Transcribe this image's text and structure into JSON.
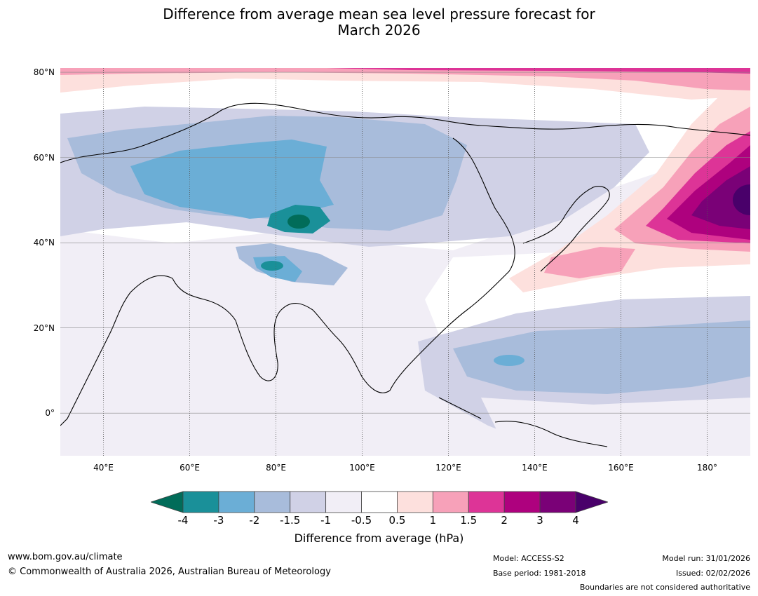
{
  "title_line1": "Difference from average mean sea level pressure forecast for",
  "title_line2": "March 2026",
  "map": {
    "lon_range": [
      30,
      190
    ],
    "lat_range": [
      -10,
      81
    ],
    "lat_ticks": [
      {
        "value": 80,
        "label": "80°N"
      },
      {
        "value": 60,
        "label": "60°N"
      },
      {
        "value": 40,
        "label": "40°N"
      },
      {
        "value": 20,
        "label": "20°N"
      },
      {
        "value": 0,
        "label": "0°"
      }
    ],
    "lon_ticks": [
      {
        "value": 40,
        "label": "40°E"
      },
      {
        "value": 60,
        "label": "60°E"
      },
      {
        "value": 80,
        "label": "80°E"
      },
      {
        "value": 100,
        "label": "100°E"
      },
      {
        "value": 120,
        "label": "120°E"
      },
      {
        "value": 140,
        "label": "140°E"
      },
      {
        "value": 160,
        "label": "160°E"
      },
      {
        "value": 180,
        "label": "180°"
      }
    ],
    "anomaly_regions": [
      {
        "name": "central-asia-low",
        "level": -1.5,
        "lon": 80,
        "lat": 50
      },
      {
        "name": "kazakhstan-low",
        "level": -3,
        "lon": 85,
        "lat": 45
      },
      {
        "name": "tarim-low",
        "level": -4,
        "lon": 87,
        "lat": 44
      },
      {
        "name": "tibet-low",
        "level": -3,
        "lon": 80,
        "lat": 35
      },
      {
        "name": "west-pacific-low",
        "level": -1.5,
        "lon": 145,
        "lat": 14
      },
      {
        "name": "north-pacific-high",
        "level": 4,
        "lon": 190,
        "lat": 50
      },
      {
        "name": "arctic-high",
        "level": 2,
        "lon": 160,
        "lat": 80
      }
    ]
  },
  "colorbar": {
    "ticks": [
      "-4",
      "-3",
      "-2",
      "-1.5",
      "-1",
      "-0.5",
      "0.5",
      "1",
      "1.5",
      "2",
      "3",
      "4"
    ],
    "colors": [
      "#1a9099",
      "#6baed6",
      "#a8bcdb",
      "#d0d1e6",
      "#f1eef6",
      "#ffffff",
      "#fde0dd",
      "#f7a1b9",
      "#dd3497",
      "#ae017e",
      "#7a0177"
    ],
    "under_color": "#016c59",
    "over_color": "#49006a",
    "label": "Difference from average (hPa)"
  },
  "footer": {
    "website": "www.bom.gov.au/climate",
    "copyright": "© Commonwealth of Australia 2026, Australian Bureau of Meteorology",
    "model": "Model: ACCESS-S2",
    "base_period": "Base period: 1981-2018",
    "model_run": "Model run: 31/01/2026",
    "issued": "Issued: 02/02/2026",
    "disclaimer": "Boundaries are not considered authoritative"
  }
}
